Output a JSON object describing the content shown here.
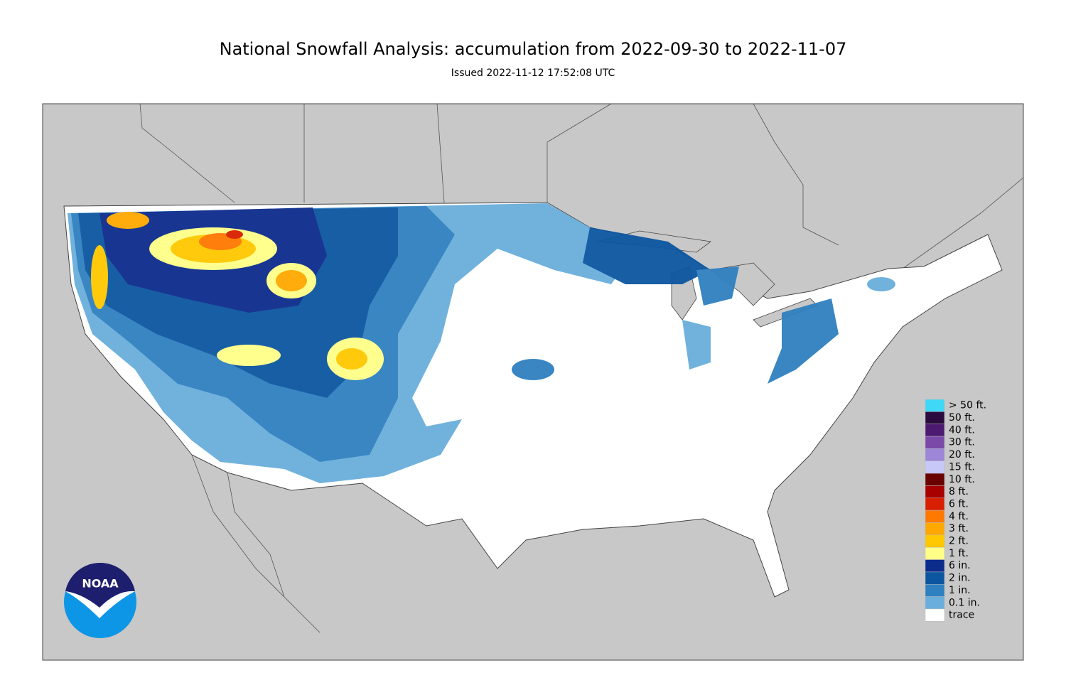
{
  "header": {
    "title": "National Snowfall Analysis: accumulation from 2022-09-30 to 2022-11-07",
    "subtitle": "Issued 2022-11-12 17:52:08 UTC"
  },
  "legend": [
    {
      "label": "> 50 ft.",
      "color": "#3fd8f5"
    },
    {
      "label": "50 ft.",
      "color": "#2b0b3f"
    },
    {
      "label": "40 ft.",
      "color": "#4c1a70"
    },
    {
      "label": "30 ft.",
      "color": "#7a4aa8"
    },
    {
      "label": "20 ft.",
      "color": "#9d86d8"
    },
    {
      "label": "15 ft.",
      "color": "#c8c8f8"
    },
    {
      "label": "10 ft.",
      "color": "#6a0000"
    },
    {
      "label": "8 ft.",
      "color": "#a80000"
    },
    {
      "label": "6 ft.",
      "color": "#d82000"
    },
    {
      "label": "4 ft.",
      "color": "#ff7800"
    },
    {
      "label": "3 ft.",
      "color": "#ffa800"
    },
    {
      "label": "2 ft.",
      "color": "#ffc800"
    },
    {
      "label": "1 ft.",
      "color": "#ffff88"
    },
    {
      "label": "6 in.",
      "color": "#0c2c8c"
    },
    {
      "label": "2 in.",
      "color": "#0c56a0"
    },
    {
      "label": "1 in.",
      "color": "#2f80c0"
    },
    {
      "label": "0.1 in.",
      "color": "#6aaedc"
    },
    {
      "label": "trace",
      "color": "#ffffff"
    }
  ],
  "logo": {
    "text": "NOAA"
  }
}
